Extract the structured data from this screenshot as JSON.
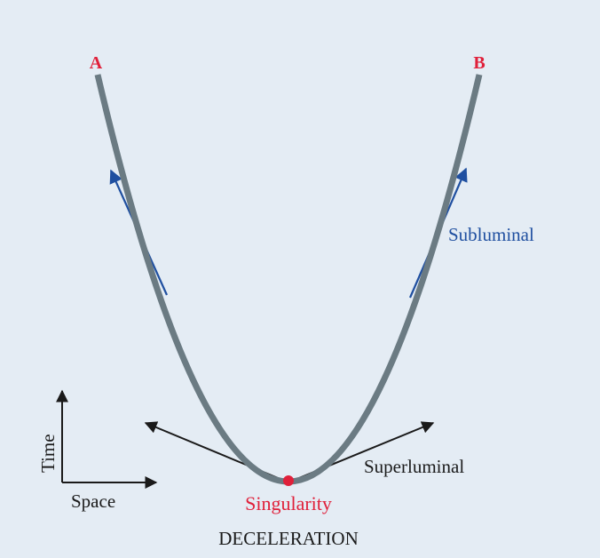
{
  "points": {
    "a_label": "A",
    "b_label": "B"
  },
  "arrows": {
    "subluminal_label": "Subluminal",
    "superluminal_label": "Superluminal"
  },
  "singularity": {
    "label": "Singularity"
  },
  "caption": "DECELERATION",
  "axes": {
    "time_label": "Time",
    "space_label": "Space"
  },
  "colors": {
    "background": "#e4ecf4",
    "curve": "#6b7b83",
    "point_labels": "#e0203a",
    "singularity": "#e0203a",
    "subluminal": "#1f4fa0",
    "superluminal": "#1a1a1a",
    "text": "#1a1a1a"
  }
}
